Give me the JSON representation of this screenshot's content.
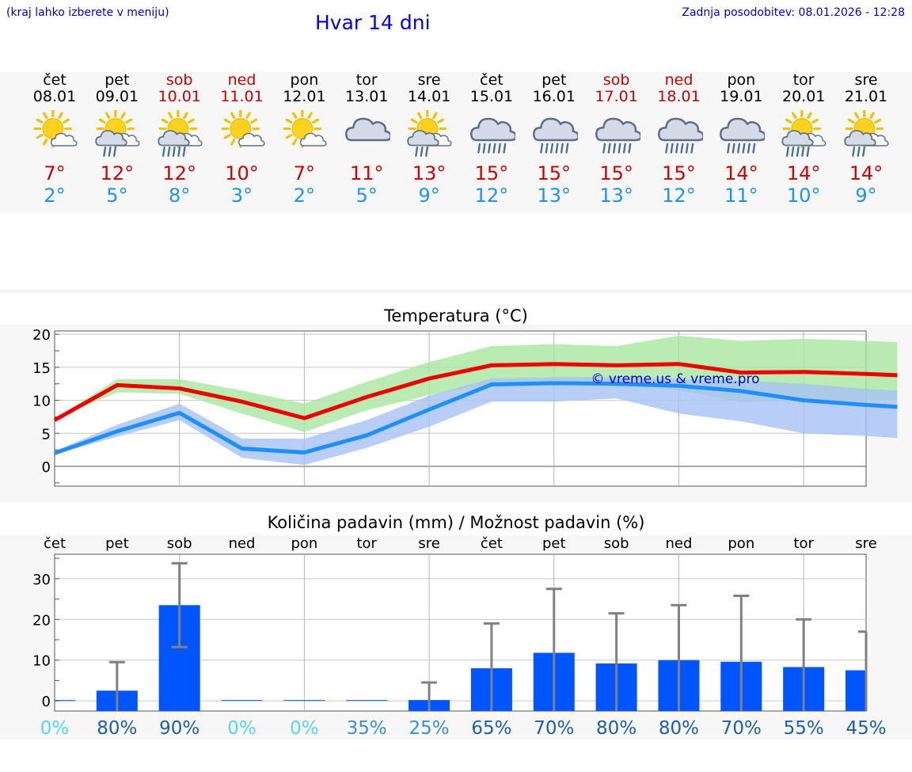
{
  "header": {
    "hint": "(kraj lahko izberete v meniju)",
    "title": "Hvar 14 dni",
    "updated": "Zadnja posodobitev: 08.01.2026 - 12:28"
  },
  "days": [
    {
      "name": "čet",
      "date": "08.01",
      "weekend": false,
      "icon": "sun-cloud-icon",
      "max": "7°",
      "min": "2°"
    },
    {
      "name": "pet",
      "date": "09.01",
      "weekend": false,
      "icon": "sun-cloud-rain-icon",
      "max": "12°",
      "min": "5°"
    },
    {
      "name": "sob",
      "date": "10.01",
      "weekend": true,
      "icon": "sun-cloud-heavy-rain-icon",
      "max": "12°",
      "min": "8°"
    },
    {
      "name": "ned",
      "date": "11.01",
      "weekend": true,
      "icon": "sun-cloud-icon",
      "max": "10°",
      "min": "3°"
    },
    {
      "name": "pon",
      "date": "12.01",
      "weekend": false,
      "icon": "sun-cloud-icon",
      "max": "7°",
      "min": "2°"
    },
    {
      "name": "tor",
      "date": "13.01",
      "weekend": false,
      "icon": "cloud-icon",
      "max": "11°",
      "min": "5°"
    },
    {
      "name": "sre",
      "date": "14.01",
      "weekend": false,
      "icon": "sun-cloud-rain-icon",
      "max": "13°",
      "min": "9°"
    },
    {
      "name": "čet",
      "date": "15.01",
      "weekend": false,
      "icon": "cloud-heavy-rain-icon",
      "max": "15°",
      "min": "12°"
    },
    {
      "name": "pet",
      "date": "16.01",
      "weekend": false,
      "icon": "cloud-heavy-rain-icon",
      "max": "15°",
      "min": "13°"
    },
    {
      "name": "sob",
      "date": "17.01",
      "weekend": true,
      "icon": "cloud-heavy-rain-icon",
      "max": "15°",
      "min": "13°"
    },
    {
      "name": "ned",
      "date": "18.01",
      "weekend": true,
      "icon": "cloud-heavy-rain-icon",
      "max": "15°",
      "min": "12°"
    },
    {
      "name": "pon",
      "date": "19.01",
      "weekend": false,
      "icon": "cloud-heavy-rain-icon",
      "max": "14°",
      "min": "11°"
    },
    {
      "name": "tor",
      "date": "20.01",
      "weekend": false,
      "icon": "sun-cloud-heavy-rain-icon",
      "max": "14°",
      "min": "10°"
    },
    {
      "name": "sre",
      "date": "21.01",
      "weekend": false,
      "icon": "sun-cloud-rain-icon",
      "max": "14°",
      "min": "9°"
    }
  ],
  "colors": {
    "max": "#ee0000",
    "min": "#1e8fff",
    "max_band": "#a8e6a0",
    "min_band": "#a8c2f4",
    "bar": "#0055ff",
    "err": "#808080",
    "prob_low": "#55d6ee",
    "prob_mid": "#3a8fd0",
    "prob_high": "#1a5fa8"
  },
  "chart_data": [
    {
      "type": "line",
      "title": "Temperatura (°C)",
      "watermark": "© vreme.us & vreme.pro",
      "ylim": [
        -3,
        20.5
      ],
      "yticks": [
        0,
        5,
        10,
        15,
        20
      ],
      "x_days": [
        0,
        1,
        2,
        3,
        4,
        5,
        6,
        7,
        8,
        9,
        10,
        11,
        12,
        13,
        13.5
      ],
      "series": [
        {
          "name": "max",
          "values": [
            7.0,
            12.3,
            11.8,
            9.8,
            7.3,
            10.5,
            13.3,
            15.3,
            15.5,
            15.3,
            15.5,
            14.2,
            14.3,
            14.0,
            13.8
          ],
          "band_low": [
            7.2,
            11.2,
            11.0,
            8.0,
            5.2,
            8.5,
            10.8,
            12.5,
            12.8,
            12.8,
            11.5,
            9.7,
            10.0,
            10.0,
            10.0
          ],
          "band_high": [
            7.2,
            13.2,
            13.2,
            11.5,
            9.5,
            12.8,
            15.8,
            18.2,
            18.5,
            18.2,
            19.8,
            19.0,
            19.3,
            19.0,
            18.8
          ]
        },
        {
          "name": "min",
          "values": [
            2.0,
            5.3,
            8.1,
            2.7,
            2.1,
            4.7,
            8.6,
            12.4,
            12.6,
            12.5,
            12.2,
            11.4,
            10.0,
            9.3,
            9.0
          ],
          "band_low": [
            1.8,
            4.5,
            7.0,
            1.3,
            0.2,
            2.8,
            6.0,
            9.8,
            9.8,
            10.3,
            8.0,
            6.8,
            5.0,
            4.6,
            4.3
          ],
          "band_high": [
            2.3,
            6.3,
            9.5,
            4.2,
            4.2,
            7.0,
            10.7,
            13.3,
            13.5,
            13.5,
            13.2,
            13.0,
            12.5,
            11.7,
            11.5
          ]
        }
      ]
    },
    {
      "type": "bar",
      "title": "Količina padavin (mm) / Možnost padavin (%)",
      "categories": [
        "čet",
        "pet",
        "sob",
        "ned",
        "pon",
        "tor",
        "sre",
        "čet",
        "pet",
        "sob",
        "ned",
        "pon",
        "tor",
        "sre"
      ],
      "ylim": [
        -2.5,
        36
      ],
      "yticks": [
        0,
        10,
        20,
        30
      ],
      "values": [
        0,
        2.5,
        23.5,
        0,
        0,
        0,
        0.2,
        8.0,
        11.8,
        9.2,
        10.0,
        9.6,
        8.3,
        7.5
      ],
      "error_high": [
        0,
        9.5,
        33.8,
        0,
        0,
        0,
        4.5,
        19.0,
        27.5,
        21.5,
        23.5,
        25.8,
        20.0,
        17.0
      ],
      "error_low": [
        0,
        0,
        13.2,
        0,
        0,
        0,
        0,
        0,
        0,
        0,
        0,
        0,
        0,
        0
      ],
      "probabilities": [
        "0%",
        "80%",
        "90%",
        "0%",
        "0%",
        "35%",
        "25%",
        "65%",
        "70%",
        "80%",
        "80%",
        "70%",
        "55%",
        "45%"
      ],
      "probability_values": [
        0,
        80,
        90,
        0,
        0,
        35,
        25,
        65,
        70,
        80,
        80,
        70,
        55,
        45
      ]
    }
  ]
}
